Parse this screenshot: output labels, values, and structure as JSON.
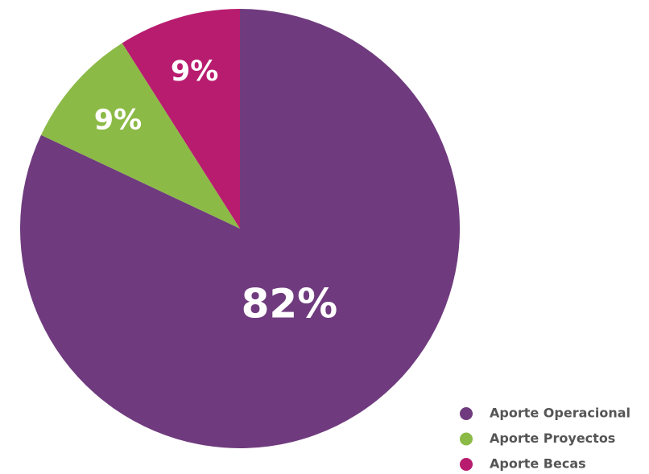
{
  "chart_data": {
    "type": "pie",
    "categories": [
      "Aporte Operacional",
      "Aporte Proyectos",
      "Aporte Becas"
    ],
    "values": [
      82,
      9,
      9
    ],
    "value_labels": [
      "82%",
      "9%",
      "9%"
    ],
    "colors": [
      "#6f3b7e",
      "#8cba47",
      "#b81c6f"
    ],
    "legend": "bottom-right"
  }
}
